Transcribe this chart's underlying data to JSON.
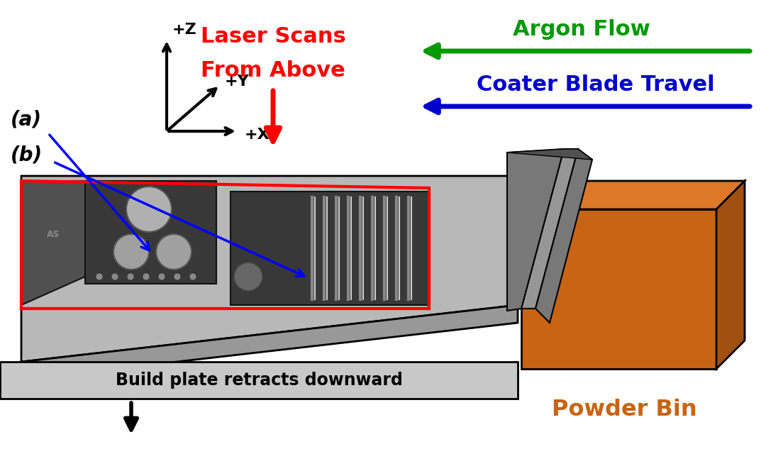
{
  "bg_color": "#ffffff",
  "fig_width": 10.8,
  "fig_height": 6.4,
  "dpi": 100,
  "text": {
    "laser_line1": "Laser Scans",
    "laser_line2": "From Above",
    "argon": "Argon Flow",
    "coater": "Coater Blade Travel",
    "build_plate": "Build plate retracts downward",
    "powder_bin": "Powder Bin",
    "label_a": "(a)",
    "label_b": "(b)",
    "z": "+Z",
    "y": "+Y",
    "x": "+X"
  },
  "colors": {
    "red": "#ff0000",
    "green": "#009900",
    "blue": "#0000cc",
    "black": "#000000",
    "dark_mach": "#383838",
    "mid_gray": "#787878",
    "light_gray": "#b4b4b4",
    "plate_top": "#b8b8b8",
    "plate_front": "#989898",
    "powder_orange": "#c86414",
    "powder_light": "#dc7828",
    "powder_dark": "#a05010",
    "blade_light": "#969696",
    "blade_mid": "#787878",
    "blade_dark": "#505050",
    "bottom_bar": "#c8c8c8",
    "nose_gray": "#505050"
  }
}
